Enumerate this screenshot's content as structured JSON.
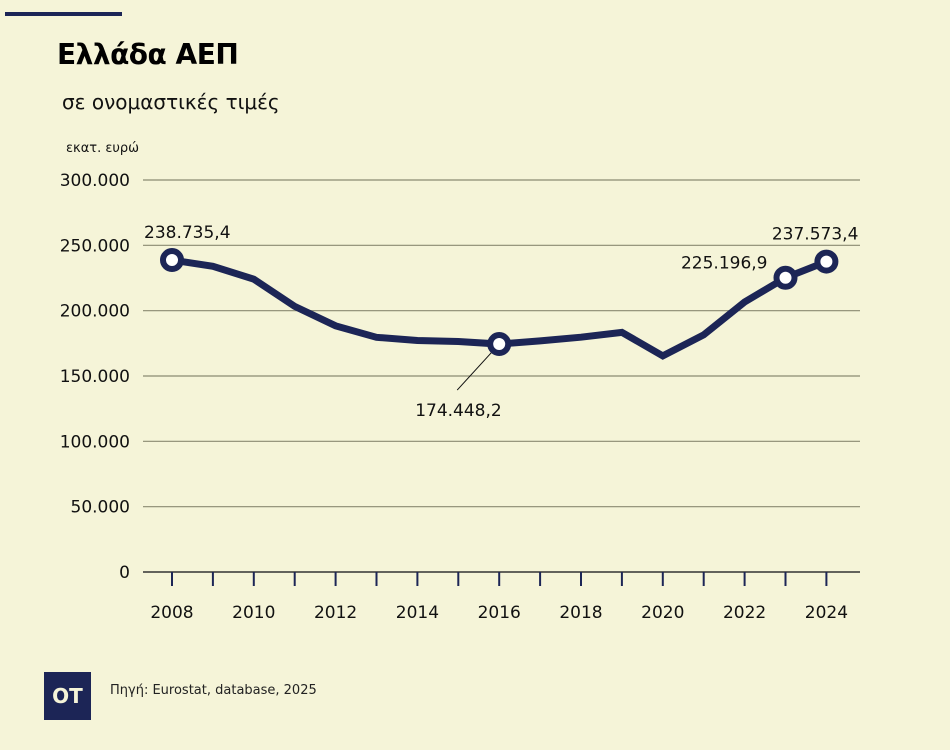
{
  "header": {
    "title": "Ελλάδα ΑΕΠ",
    "subtitle": "σε ονομαστικές τιμές",
    "unit": "εκατ. ευρώ"
  },
  "footer": {
    "logo": "OT",
    "source": "Πηγή: Eurostat, database, 2025"
  },
  "colors": {
    "background": "#f5f4d8",
    "line": "#1c2556",
    "grid": "#8a8a72"
  },
  "chart_data": {
    "type": "line",
    "title": "Ελλάδα ΑΕΠ",
    "subtitle": "σε ονομαστικές τιμές",
    "ylabel": "εκατ. ευρώ",
    "xlabel": "",
    "ylim": [
      0,
      300000
    ],
    "yticks": [
      0,
      50000,
      100000,
      150000,
      200000,
      250000,
      300000
    ],
    "ytick_labels": [
      "0",
      "50.000",
      "100.000",
      "150.000",
      "200.000",
      "250.000",
      "300.000"
    ],
    "xtick_labels": [
      "2008",
      "2010",
      "2012",
      "2014",
      "2016",
      "2018",
      "2020",
      "2022",
      "2024"
    ],
    "grid": true,
    "legend": "none",
    "series": [
      {
        "name": "ΑΕΠ",
        "x": [
          2008,
          2009,
          2010,
          2011,
          2012,
          2013,
          2014,
          2015,
          2016,
          2017,
          2018,
          2019,
          2020,
          2021,
          2022,
          2023,
          2024
        ],
        "values": [
          238735.4,
          234000,
          224100,
          203300,
          188400,
          179600,
          177200,
          176400,
          174448.2,
          176900,
          179700,
          183400,
          165400,
          181500,
          206600,
          225196.9,
          237573.4
        ]
      }
    ],
    "annotations": [
      {
        "x": 2008,
        "value": 238735.4,
        "text": "238.735,4"
      },
      {
        "x": 2016,
        "value": 174448.2,
        "text": "174.448,2"
      },
      {
        "x": 2023,
        "value": 225196.9,
        "text": "225.196,9"
      },
      {
        "x": 2024,
        "value": 237573.4,
        "text": "237.573,4"
      }
    ]
  }
}
